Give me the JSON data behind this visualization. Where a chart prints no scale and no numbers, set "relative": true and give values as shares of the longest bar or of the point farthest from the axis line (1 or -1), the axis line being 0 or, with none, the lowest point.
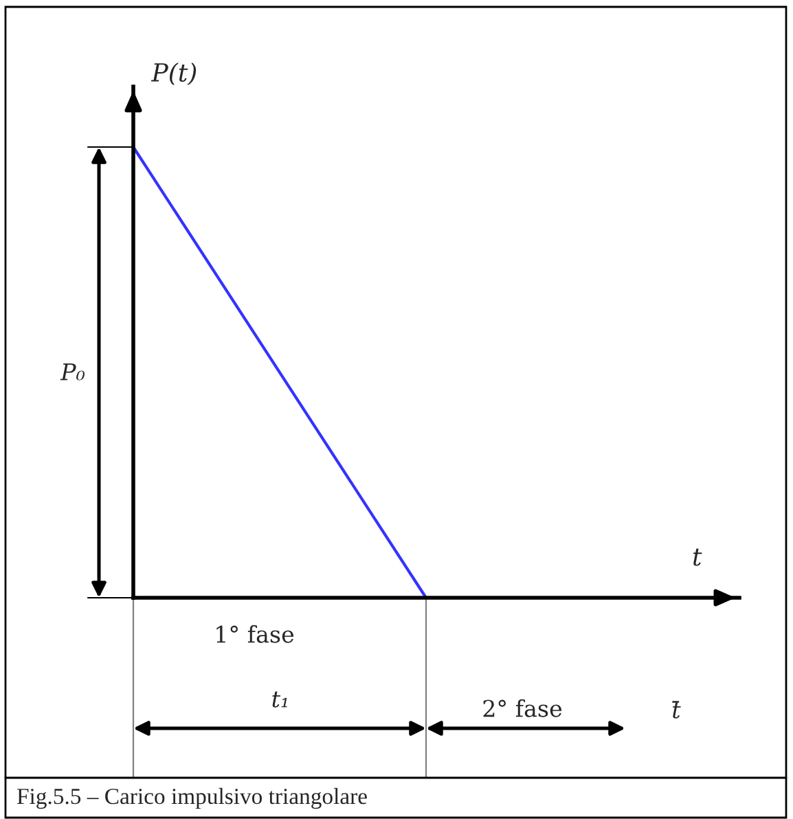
{
  "chart_data": {
    "type": "line",
    "relative": true,
    "xlabel": "t",
    "ylabel": "P(t)",
    "categories": [
      null,
      null,
      null
    ],
    "series": [
      {
        "color": "#3333ff",
        "values": [
          1,
          0,
          0
        ]
      }
    ],
    "annotations": [
      "P₀",
      "1° fase",
      "t₁",
      "2° fase",
      "t̄",
      "Fig.5.5 – Carico impulsivo triangolare"
    ],
    "marker": "none",
    "line_style": "solid"
  }
}
